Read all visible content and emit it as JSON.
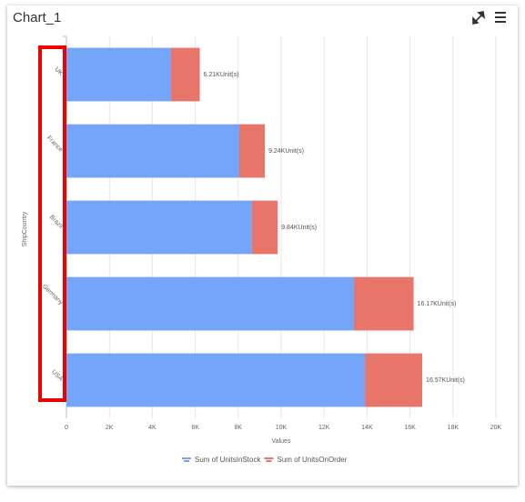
{
  "chart_data": {
    "type": "stacked-bar-horizontal",
    "title": "Chart_1",
    "categories": [
      "UK",
      "France",
      "Brazil",
      "Germany",
      "USA"
    ],
    "series": [
      {
        "name": "Sum of UnitsInStock",
        "color": "#75a5f8",
        "values": [
          4870,
          8050,
          8640,
          13390,
          13900
        ]
      },
      {
        "name": "Sum of UnitsOnOrder",
        "color": "#e8756a",
        "values": [
          1340,
          1190,
          1200,
          2780,
          2670
        ]
      }
    ],
    "totals": [
      6210,
      9240,
      9840,
      16170,
      16570
    ],
    "total_labels": [
      "6.21KUnit(s)",
      "9.24KUnit(s)",
      "9.84KUnit(s)",
      "16.17KUnit(s)",
      "16.57KUnit(s)"
    ],
    "x_label": "Values",
    "y_label": "ShipCountry",
    "xlim": [
      0,
      20000
    ],
    "xticks": [
      0,
      {
        "value": 2000,
        "label": "2K"
      },
      {
        "value": 4000,
        "label": "4K"
      },
      {
        "value": 6000,
        "label": "6K"
      },
      {
        "value": 8000,
        "label": "8K"
      },
      {
        "value": 10000,
        "label": "10K"
      },
      {
        "value": 12000,
        "label": "12K"
      },
      {
        "value": 14000,
        "label": "14K"
      },
      {
        "value": 16000,
        "label": "16K"
      },
      {
        "value": 18000,
        "label": "18K"
      },
      {
        "value": 20000,
        "label": "20K"
      }
    ],
    "grid": true,
    "legend": "bottom"
  }
}
